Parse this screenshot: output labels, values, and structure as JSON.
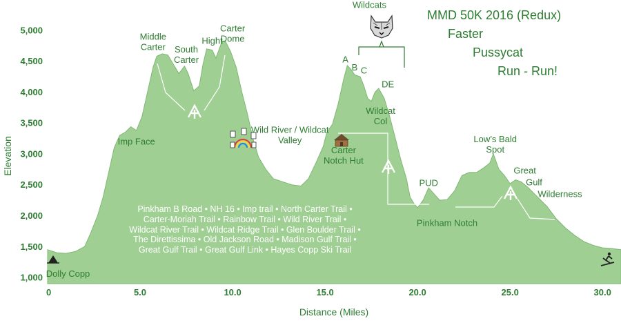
{
  "chart_data": {
    "type": "area",
    "title_lines": [
      "MMD 50K 2016 (Redux)",
      "Faster",
      "Pussycat",
      "Run - Run!"
    ],
    "xlabel": "Distance (Miles)",
    "ylabel": "Elevation",
    "xlim": [
      0,
      31
    ],
    "ylim": [
      900,
      5200
    ],
    "x_ticks": [
      {
        "value": 0,
        "label": "0"
      },
      {
        "value": 5,
        "label": "5.0"
      },
      {
        "value": 10,
        "label": "10.0"
      },
      {
        "value": 15,
        "label": "15.0"
      },
      {
        "value": 20,
        "label": "20.0"
      },
      {
        "value": 25,
        "label": "25.0"
      },
      {
        "value": 30,
        "label": "30.0"
      }
    ],
    "y_ticks": [
      {
        "value": 1000,
        "label": "1,000"
      },
      {
        "value": 1500,
        "label": "1,500"
      },
      {
        "value": 2000,
        "label": "2,000"
      },
      {
        "value": 2500,
        "label": "2,500"
      },
      {
        "value": 3000,
        "label": "3,000"
      },
      {
        "value": 3500,
        "label": "3,500"
      },
      {
        "value": 4000,
        "label": "4,000"
      },
      {
        "value": 4500,
        "label": "4,500"
      },
      {
        "value": 5000,
        "label": "5,000"
      }
    ],
    "colors": {
      "fill": "#9fcf93",
      "line": "#7fb874",
      "text": "#2e7d32"
    },
    "grid": false,
    "series": [
      {
        "points": [
          [
            0,
            1450
          ],
          [
            0.5,
            1400
          ],
          [
            1,
            1390
          ],
          [
            1.5,
            1420
          ],
          [
            2,
            1500
          ],
          [
            2.3,
            1700
          ],
          [
            2.7,
            2000
          ],
          [
            3,
            2300
          ],
          [
            3.3,
            2700
          ],
          [
            3.6,
            3100
          ],
          [
            3.9,
            3300
          ],
          [
            4.2,
            3350
          ],
          [
            4.5,
            3440
          ],
          [
            4.8,
            3380
          ],
          [
            5.1,
            3600
          ],
          [
            5.4,
            4000
          ],
          [
            5.7,
            4400
          ],
          [
            5.9,
            4580
          ],
          [
            6.2,
            4620
          ],
          [
            6.5,
            4600
          ],
          [
            6.8,
            4450
          ],
          [
            7.1,
            4300
          ],
          [
            7.4,
            4420
          ],
          [
            7.6,
            4300
          ],
          [
            7.9,
            4020
          ],
          [
            8.2,
            4100
          ],
          [
            8.4,
            4450
          ],
          [
            8.6,
            4700
          ],
          [
            8.9,
            4680
          ],
          [
            9.1,
            4550
          ],
          [
            9.4,
            4800
          ],
          [
            9.6,
            4830
          ],
          [
            9.9,
            4650
          ],
          [
            10.2,
            4400
          ],
          [
            10.5,
            4000
          ],
          [
            10.8,
            3650
          ],
          [
            11.1,
            3250
          ],
          [
            11.4,
            2950
          ],
          [
            11.8,
            2750
          ],
          [
            12.2,
            2600
          ],
          [
            12.7,
            2550
          ],
          [
            13.2,
            2500
          ],
          [
            13.7,
            2480
          ],
          [
            14.1,
            2600
          ],
          [
            14.5,
            2850
          ],
          [
            14.9,
            3120
          ],
          [
            15.1,
            3350
          ],
          [
            15.4,
            3480
          ],
          [
            15.7,
            3800
          ],
          [
            16.0,
            4200
          ],
          [
            16.2,
            4430
          ],
          [
            16.4,
            4370
          ],
          [
            16.6,
            4280
          ],
          [
            16.9,
            4250
          ],
          [
            17.1,
            4100
          ],
          [
            17.3,
            3900
          ],
          [
            17.5,
            3850
          ],
          [
            17.7,
            4000
          ],
          [
            17.9,
            4060
          ],
          [
            18.2,
            3900
          ],
          [
            18.5,
            3600
          ],
          [
            18.8,
            3250
          ],
          [
            19.1,
            2900
          ],
          [
            19.4,
            2600
          ],
          [
            19.6,
            2300
          ],
          [
            19.8,
            2200
          ],
          [
            20.0,
            2130
          ],
          [
            20.3,
            2250
          ],
          [
            20.6,
            2450
          ],
          [
            20.9,
            2350
          ],
          [
            21.2,
            2250
          ],
          [
            21.6,
            2260
          ],
          [
            22.0,
            2400
          ],
          [
            22.4,
            2650
          ],
          [
            22.8,
            2700
          ],
          [
            23.2,
            2700
          ],
          [
            23.6,
            2780
          ],
          [
            23.9,
            2850
          ],
          [
            24.1,
            3000
          ],
          [
            24.4,
            2750
          ],
          [
            24.7,
            2650
          ],
          [
            25.0,
            2520
          ],
          [
            25.3,
            2580
          ],
          [
            25.6,
            2550
          ],
          [
            26.0,
            2450
          ],
          [
            26.5,
            2300
          ],
          [
            27.0,
            2150
          ],
          [
            27.5,
            1950
          ],
          [
            28.0,
            1800
          ],
          [
            28.5,
            1680
          ],
          [
            29.0,
            1580
          ],
          [
            29.5,
            1520
          ],
          [
            30.0,
            1480
          ],
          [
            30.5,
            1470
          ],
          [
            31.0,
            1450
          ]
        ]
      }
    ],
    "annotations": [
      {
        "id": "middle-carter",
        "lines": [
          "Middle",
          "Carter"
        ],
        "x": 5.7,
        "y": 4850
      },
      {
        "id": "south-carter",
        "lines": [
          "South",
          "Carter"
        ],
        "x": 7.5,
        "y": 4640
      },
      {
        "id": "hight",
        "lines": [
          "Hight"
        ],
        "x": 8.9,
        "y": 4780
      },
      {
        "id": "carter-dome",
        "lines": [
          "Carter",
          "Dome"
        ],
        "x": 10.0,
        "y": 4980
      },
      {
        "id": "imp-face",
        "lines": [
          "Imp Face"
        ],
        "x": 4.8,
        "y": 3150
      },
      {
        "id": "wild-river",
        "lines": [
          "Wild River / Wildcat",
          "Valley"
        ],
        "x": 13.1,
        "y": 3340
      },
      {
        "id": "carter-notch-hut",
        "lines": [
          "Carter",
          "Notch Hut"
        ],
        "x": 16.0,
        "y": 3010
      },
      {
        "id": "wildcats",
        "lines": [
          "Wildcats"
        ],
        "x": 17.4,
        "y": 5360
      },
      {
        "id": "peak-a",
        "lines": [
          "A"
        ],
        "x": 16.1,
        "y": 4480
      },
      {
        "id": "peak-b",
        "lines": [
          "B"
        ],
        "x": 16.6,
        "y": 4350
      },
      {
        "id": "peak-c",
        "lines": [
          "C"
        ],
        "x": 17.1,
        "y": 4300
      },
      {
        "id": "peak-de",
        "lines": [
          "DE"
        ],
        "x": 18.4,
        "y": 4080
      },
      {
        "id": "wildcat-col",
        "lines": [
          "Wildcat",
          "Col"
        ],
        "x": 18.0,
        "y": 3650
      },
      {
        "id": "pud",
        "lines": [
          "PUD"
        ],
        "x": 20.6,
        "y": 2480
      },
      {
        "id": "pinkham-notch",
        "lines": [
          "Pinkham Notch"
        ],
        "x": 21.6,
        "y": 1830
      },
      {
        "id": "lows-bald-spot",
        "lines": [
          "Low’s Bald",
          "Spot"
        ],
        "x": 24.2,
        "y": 3190
      },
      {
        "id": "great-gulf",
        "lines": [
          "Great"
        ],
        "x": 25.8,
        "y": 2680
      },
      {
        "id": "gulf",
        "lines": [
          "Gulf"
        ],
        "x": 26.3,
        "y": 2490
      },
      {
        "id": "wilderness",
        "lines": [
          "Wilderness"
        ],
        "x": 27.7,
        "y": 2300
      },
      {
        "id": "dolly-copp",
        "lines": [
          "Dolly Copp"
        ],
        "x": 1.1,
        "y": 1010
      }
    ],
    "trail_lines": [
      "Pinkham B Road  •  NH 16  •  Imp trail  •  North Carter Trail  •",
      "Carter-Moriah Trail  •  Rainbow Trail  •  Wild River Trail  •",
      "Wildcat River Trail  •  Wildcat Ridge Trail  •  Glen Boulder Trail  •",
      "The Direttissima  •  Old Jackson Road  •  Madison Gulf Trail  •",
      "Great Gulf Trail  •  Great Gulf Link  •  Hayes Copp Ski Trail"
    ],
    "icons": [
      "at-logo-icon",
      "wildcat-icon",
      "cabin-icon",
      "tent-icon",
      "skier-icon",
      "rainbow-icon"
    ]
  }
}
